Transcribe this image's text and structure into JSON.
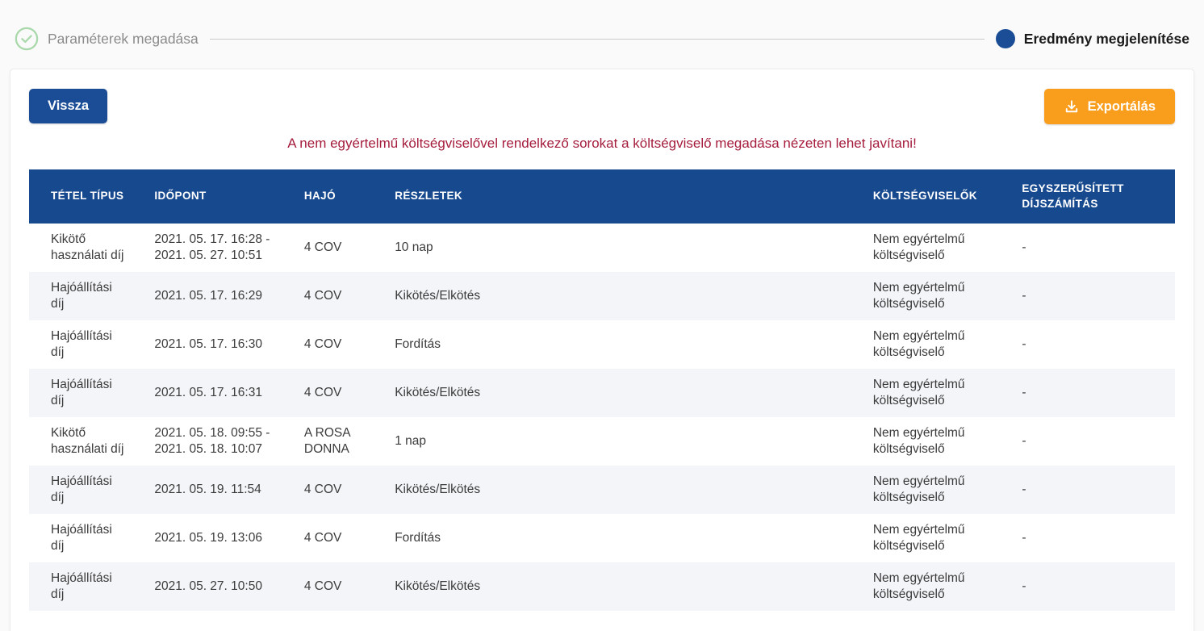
{
  "stepper": {
    "steps": [
      {
        "label": "Paraméterek megadása",
        "state": "completed"
      },
      {
        "label": "Eredmény megjelenítése",
        "state": "active"
      }
    ]
  },
  "toolbar": {
    "back_label": "Vissza",
    "export_label": "Exportálás",
    "export_icon": "download-icon"
  },
  "warning_message": "A nem egyértelmű költségviselővel rendelkező sorokat a költségviselő megadása nézeten lehet javítani!",
  "table": {
    "columns": [
      "TÉTEL TÍPUS",
      "IDŐPONT",
      "HAJÓ",
      "RÉSZLETEK",
      "KÖLTSÉGVISELŐK",
      "EGYSZERŰSÍTETT DÍJSZÁMÍTÁS"
    ],
    "rows": [
      {
        "cells": [
          "Kikötő használati díj",
          "2021. 05. 17. 16:28 - 2021. 05. 27. 10:51",
          "4 COV",
          "10 nap",
          "Nem egyértelmű költségviselő",
          "-"
        ]
      },
      {
        "cells": [
          "Hajóállítási díj",
          "2021. 05. 17. 16:29",
          "4 COV",
          "Kikötés/Elkötés",
          "Nem egyértelmű költségviselő",
          "-"
        ]
      },
      {
        "cells": [
          "Hajóállítási díj",
          "2021. 05. 17. 16:30",
          "4 COV",
          "Fordítás",
          "Nem egyértelmű költségviselő",
          "-"
        ]
      },
      {
        "cells": [
          "Hajóállítási díj",
          "2021. 05. 17. 16:31",
          "4 COV",
          "Kikötés/Elkötés",
          "Nem egyértelmű költségviselő",
          "-"
        ]
      },
      {
        "cells": [
          "Kikötő használati díj",
          "2021. 05. 18. 09:55 - 2021. 05. 18. 10:07",
          "A ROSA DONNA",
          "1 nap",
          "Nem egyértelmű költségviselő",
          "-"
        ]
      },
      {
        "cells": [
          "Hajóállítási díj",
          "2021. 05. 19. 11:54",
          "4 COV",
          "Kikötés/Elkötés",
          "Nem egyértelmű költségviselő",
          "-"
        ]
      },
      {
        "cells": [
          "Hajóállítási díj",
          "2021. 05. 19. 13:06",
          "4 COV",
          "Fordítás",
          "Nem egyértelmű költségviselő",
          "-"
        ]
      },
      {
        "cells": [
          "Hajóállítási díj",
          "2021. 05. 27. 10:50",
          "4 COV",
          "Kikötés/Elkötés",
          "Nem egyértelmű költségviselő",
          "-"
        ]
      }
    ]
  },
  "colors": {
    "primary_blue": "#17498f",
    "accent_orange": "#f99d1c",
    "warning_red": "#a51c3c",
    "completed_step_green": "#a9d8ab",
    "row_stripe": "#f4f5f8",
    "page_background": "#fafafa"
  }
}
